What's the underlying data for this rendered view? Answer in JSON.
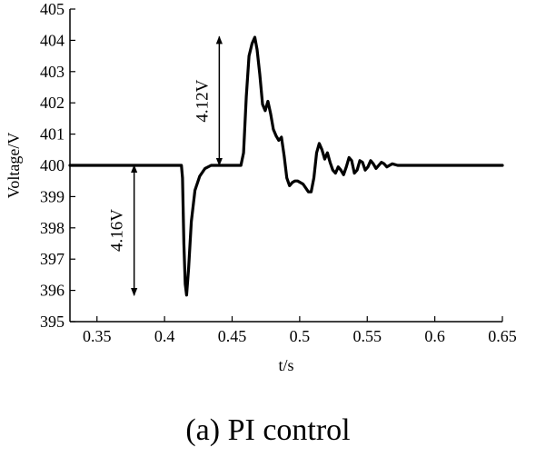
{
  "chart_data": {
    "type": "line",
    "xlabel": "t/s",
    "ylabel": "Voltage/V",
    "xlim": [
      0.33,
      0.65
    ],
    "ylim": [
      395,
      405
    ],
    "xticks": [
      0.35,
      0.4,
      0.45,
      0.5,
      0.55,
      0.6,
      0.65
    ],
    "xtick_labels": [
      "0.35",
      "0.4",
      "0.45",
      "0.5",
      "0.55",
      "0.6",
      "0.65"
    ],
    "yticks": [
      395,
      396,
      397,
      398,
      399,
      400,
      401,
      402,
      403,
      404,
      405
    ],
    "ytick_labels": [
      "395",
      "396",
      "397",
      "398",
      "399",
      "400",
      "401",
      "402",
      "403",
      "404",
      "405"
    ],
    "grid": false,
    "series": [
      {
        "x": [
          0.33,
          0.36,
          0.385,
          0.4,
          0.4125,
          0.4133,
          0.4143,
          0.4153,
          0.4163,
          0.4178,
          0.4198,
          0.4225,
          0.426,
          0.43,
          0.4345,
          0.44,
          0.4485,
          0.4565,
          0.4585,
          0.4605,
          0.4625,
          0.4648,
          0.4668,
          0.4685,
          0.4705,
          0.4725,
          0.4745,
          0.4765,
          0.4785,
          0.4805,
          0.4825,
          0.4845,
          0.4865,
          0.4885,
          0.4905,
          0.4925,
          0.4945,
          0.4965,
          0.4985,
          0.5025,
          0.5065,
          0.5085,
          0.5105,
          0.5125,
          0.5145,
          0.5165,
          0.5185,
          0.5205,
          0.5225,
          0.5245,
          0.5265,
          0.5285,
          0.5305,
          0.5325,
          0.5345,
          0.5365,
          0.5385,
          0.5405,
          0.5425,
          0.5445,
          0.5465,
          0.5485,
          0.5505,
          0.5525,
          0.5545,
          0.5565,
          0.5585,
          0.5605,
          0.5625,
          0.5645,
          0.5665,
          0.5685,
          0.5725,
          0.5765,
          0.58,
          0.59,
          0.6,
          0.62,
          0.65
        ],
        "values": [
          400,
          400,
          400,
          400,
          400,
          399.6,
          397.5,
          396.2,
          395.85,
          396.7,
          398.2,
          399.2,
          399.65,
          399.9,
          400,
          400,
          400,
          400,
          400.4,
          402.2,
          403.5,
          403.9,
          404.1,
          403.7,
          402.9,
          401.95,
          401.75,
          402.05,
          401.65,
          401.15,
          400.95,
          400.8,
          400.9,
          400.3,
          399.6,
          399.35,
          399.45,
          399.5,
          399.5,
          399.4,
          399.15,
          399.15,
          399.6,
          400.4,
          400.7,
          400.5,
          400.2,
          400.4,
          400.1,
          399.85,
          399.75,
          399.95,
          399.85,
          399.7,
          399.95,
          400.25,
          400.15,
          399.75,
          399.85,
          400.15,
          400.1,
          399.85,
          399.95,
          400.15,
          400.05,
          399.9,
          400,
          400.1,
          400.05,
          399.95,
          400,
          400.05,
          400,
          400,
          400,
          400,
          400,
          400,
          400
        ]
      }
    ],
    "annotations": [
      {
        "text": "4.12V",
        "x": 0.4405,
        "y_from": 400,
        "y_to": 404.12
      },
      {
        "text": "4.16V",
        "x": 0.3775,
        "y_from": 400,
        "y_to": 395.84
      }
    ]
  },
  "caption": "(a) PI control"
}
